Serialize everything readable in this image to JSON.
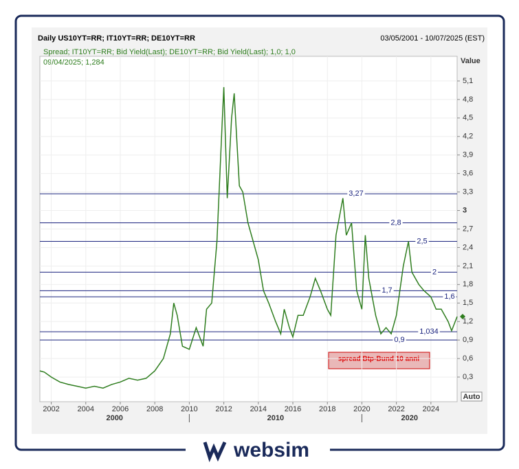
{
  "chart_data": {
    "type": "line",
    "title": "Daily US10YT=RR; IT10YT=RR; DE10YT=RR",
    "date_range": "03/05/2001 - 10/07/2025 (EST)",
    "last_value_label": "09/04/2025; 1,284",
    "y_label": "Value",
    "annotation": "spread Btp-Bund 10 anni",
    "scale_button": "Auto",
    "brand": "websim",
    "grid": true,
    "series": [
      {
        "name": "Spread; IT10YT=RR; Bid Yield(Last); DE10YT=RR; Bid Yield(Last);  1,0; 1,0",
        "color": "#2e7d1e",
        "x": [
          2001.34,
          2001.6,
          2002,
          2002.5,
          2003,
          2003.5,
          2004,
          2004.5,
          2005,
          2005.5,
          2006,
          2006.5,
          2007,
          2007.5,
          2008,
          2008.5,
          2008.9,
          2009.1,
          2009.3,
          2009.6,
          2010,
          2010.4,
          2010.8,
          2011,
          2011.3,
          2011.6,
          2011.9,
          2012,
          2012.2,
          2012.45,
          2012.6,
          2012.9,
          2013.1,
          2013.4,
          2013.7,
          2014,
          2014.3,
          2014.6,
          2015,
          2015.3,
          2015.5,
          2015.8,
          2016,
          2016.3,
          2016.6,
          2017,
          2017.3,
          2017.6,
          2018,
          2018.2,
          2018.5,
          2018.9,
          2019.1,
          2019.4,
          2019.7,
          2020,
          2020.2,
          2020.4,
          2020.8,
          2021.1,
          2021.4,
          2021.7,
          2022,
          2022.4,
          2022.7,
          2022.9,
          2023.3,
          2023.6,
          2024,
          2024.3,
          2024.6,
          2025,
          2025.2,
          2025.52
        ],
        "values": [
          0.4,
          0.38,
          0.3,
          0.22,
          0.18,
          0.15,
          0.12,
          0.15,
          0.12,
          0.18,
          0.22,
          0.28,
          0.25,
          0.28,
          0.4,
          0.6,
          1.0,
          1.5,
          1.3,
          0.8,
          0.75,
          1.1,
          0.8,
          1.4,
          1.5,
          2.5,
          4.4,
          5.0,
          3.2,
          4.5,
          4.9,
          3.4,
          3.3,
          2.8,
          2.5,
          2.2,
          1.7,
          1.5,
          1.2,
          1.0,
          1.4,
          1.1,
          0.95,
          1.3,
          1.3,
          1.6,
          1.9,
          1.7,
          1.4,
          1.3,
          2.6,
          3.2,
          2.6,
          2.8,
          1.7,
          1.4,
          2.6,
          1.9,
          1.3,
          1.0,
          1.1,
          1.0,
          1.3,
          2.1,
          2.5,
          2.0,
          1.8,
          1.7,
          1.6,
          1.4,
          1.4,
          1.2,
          1.05,
          1.28
        ]
      }
    ],
    "xlim": [
      2001.34,
      2025.52
    ],
    "xticks": [
      2002,
      2004,
      2006,
      2008,
      2010,
      2012,
      2014,
      2016,
      2018,
      2020,
      2022,
      2024
    ],
    "x_groups": [
      "2000",
      "2010",
      "2020"
    ],
    "x_group_bounds": [
      2010,
      2020
    ],
    "ylim": [
      -0.1,
      5.5
    ],
    "yticks": [
      {
        "value": 0.3,
        "label": "0,3"
      },
      {
        "value": 0.6,
        "label": "0,6"
      },
      {
        "value": 0.9,
        "label": "0,9"
      },
      {
        "value": 1.2,
        "label": "1,2"
      },
      {
        "value": 1.5,
        "label": "1,5"
      },
      {
        "value": 1.8,
        "label": "1,8"
      },
      {
        "value": 2.1,
        "label": "2,1"
      },
      {
        "value": 2.4,
        "label": "2,4"
      },
      {
        "value": 2.7,
        "label": "2,7"
      },
      3,
      {
        "value": 3.3,
        "label": "3,3"
      },
      {
        "value": 3.6,
        "label": "3,6"
      },
      {
        "value": 3.9,
        "label": "3,9"
      },
      {
        "value": 4.2,
        "label": "4,2"
      },
      {
        "value": 4.5,
        "label": "4,5"
      },
      {
        "value": 4.8,
        "label": "4,8"
      },
      {
        "value": 5.1,
        "label": "5,1"
      }
    ],
    "levels": [
      {
        "value": 3.27,
        "label": "3,27"
      },
      {
        "value": 2.8,
        "label": "2,8"
      },
      {
        "value": 2.5,
        "label": "2,5"
      },
      2,
      {
        "value": 1.7,
        "label": "1,7"
      },
      {
        "value": 1.6,
        "label": "1,6"
      },
      {
        "value": 1.034,
        "label": "1,034"
      },
      {
        "value": 0.9,
        "label": "0,9"
      }
    ],
    "level_color": "#1a237e"
  }
}
